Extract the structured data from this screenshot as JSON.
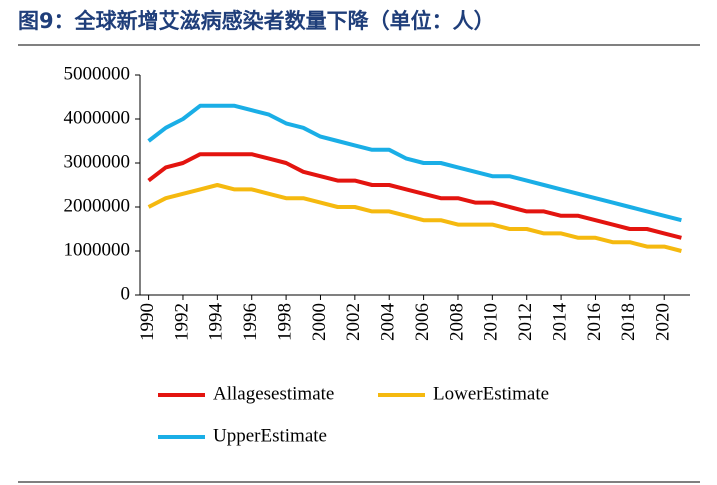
{
  "chart_data": {
    "type": "line",
    "title": "图9：全球新增艾滋病感染者数量下降（单位：人）",
    "x": [
      1990,
      1991,
      1992,
      1993,
      1994,
      1995,
      1996,
      1997,
      1998,
      1999,
      2000,
      2001,
      2002,
      2003,
      2004,
      2005,
      2006,
      2007,
      2008,
      2009,
      2010,
      2011,
      2012,
      2013,
      2014,
      2015,
      2016,
      2017,
      2018,
      2019,
      2020,
      2021
    ],
    "series": [
      {
        "name": "Allagesestimate",
        "color": "#e3140f",
        "values": [
          2600000,
          2900000,
          3000000,
          3200000,
          3200000,
          3200000,
          3200000,
          3100000,
          3000000,
          2800000,
          2700000,
          2600000,
          2600000,
          2500000,
          2500000,
          2400000,
          2300000,
          2200000,
          2200000,
          2100000,
          2100000,
          2000000,
          1900000,
          1900000,
          1800000,
          1800000,
          1700000,
          1600000,
          1500000,
          1500000,
          1400000,
          1300000
        ]
      },
      {
        "name": "LowerEstimate",
        "color": "#f5b90f",
        "values": [
          2000000,
          2200000,
          2300000,
          2400000,
          2500000,
          2400000,
          2400000,
          2300000,
          2200000,
          2200000,
          2100000,
          2000000,
          2000000,
          1900000,
          1900000,
          1800000,
          1700000,
          1700000,
          1600000,
          1600000,
          1600000,
          1500000,
          1500000,
          1400000,
          1400000,
          1300000,
          1300000,
          1200000,
          1200000,
          1100000,
          1100000,
          1000000
        ]
      },
      {
        "name": "UpperEstimate",
        "color": "#1aaee6",
        "values": [
          3500000,
          3800000,
          4000000,
          4300000,
          4300000,
          4300000,
          4200000,
          4100000,
          3900000,
          3800000,
          3600000,
          3500000,
          3400000,
          3300000,
          3300000,
          3100000,
          3000000,
          3000000,
          2900000,
          2800000,
          2700000,
          2700000,
          2600000,
          2500000,
          2400000,
          2300000,
          2200000,
          2100000,
          2000000,
          1900000,
          1800000,
          1700000
        ]
      }
    ],
    "xlim": [
      1989.5,
      2021.5
    ],
    "xticks": [
      1990,
      1992,
      1994,
      1996,
      1998,
      2000,
      2002,
      2004,
      2006,
      2008,
      2010,
      2012,
      2014,
      2016,
      2018,
      2020
    ],
    "ylim": [
      0,
      5000000
    ],
    "yticks": [
      0,
      1000000,
      2000000,
      3000000,
      4000000,
      5000000
    ]
  }
}
